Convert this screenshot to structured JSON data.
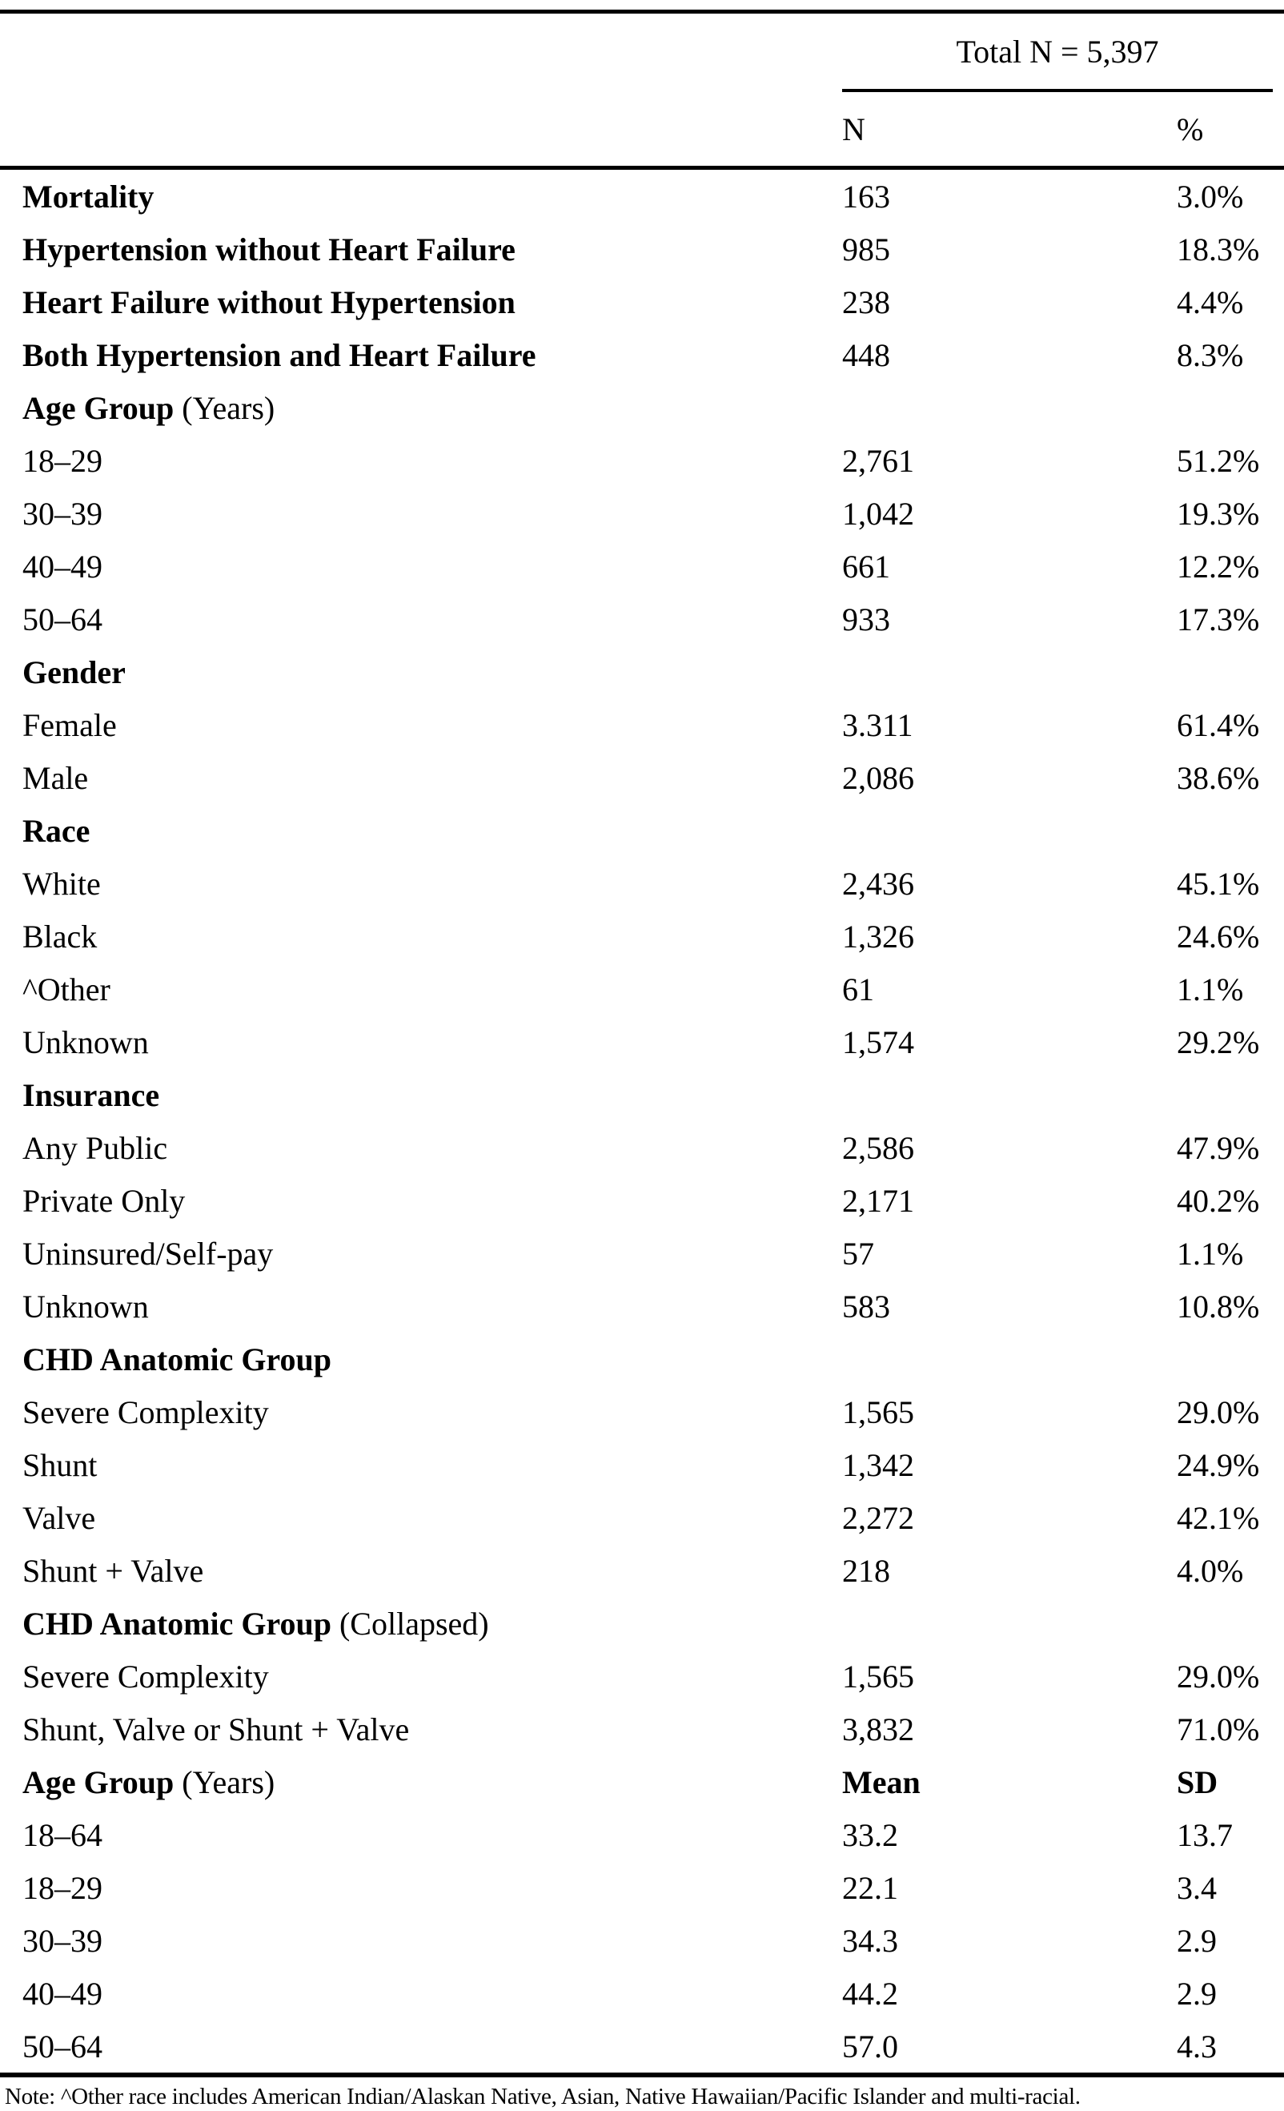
{
  "table": {
    "header": {
      "total_label": "Total N = 5,397",
      "col_n": "N",
      "col_pct": "%"
    },
    "rows": [
      {
        "label": "Mortality",
        "suffix": "",
        "label_bold": true,
        "n": "163",
        "pct": "3.0%",
        "values_bold": false
      },
      {
        "label": "Hypertension without Heart Failure",
        "suffix": "",
        "label_bold": true,
        "n": "985",
        "pct": "18.3%",
        "values_bold": false
      },
      {
        "label": "Heart Failure without Hypertension",
        "suffix": "",
        "label_bold": true,
        "n": "238",
        "pct": "4.4%",
        "values_bold": false
      },
      {
        "label": "Both Hypertension and Heart Failure",
        "suffix": "",
        "label_bold": true,
        "n": "448",
        "pct": "8.3%",
        "values_bold": false
      },
      {
        "label": "Age Group",
        "suffix": " (Years)",
        "label_bold": true,
        "n": "",
        "pct": "",
        "values_bold": false
      },
      {
        "label": "18–29",
        "suffix": "",
        "label_bold": false,
        "n": "2,761",
        "pct": "51.2%",
        "values_bold": false
      },
      {
        "label": "30–39",
        "suffix": "",
        "label_bold": false,
        "n": "1,042",
        "pct": "19.3%",
        "values_bold": false
      },
      {
        "label": "40–49",
        "suffix": "",
        "label_bold": false,
        "n": "661",
        "pct": "12.2%",
        "values_bold": false
      },
      {
        "label": "50–64",
        "suffix": "",
        "label_bold": false,
        "n": "933",
        "pct": "17.3%",
        "values_bold": false
      },
      {
        "label": "Gender",
        "suffix": "",
        "label_bold": true,
        "n": "",
        "pct": "",
        "values_bold": false
      },
      {
        "label": "Female",
        "suffix": "",
        "label_bold": false,
        "n": "3.311",
        "pct": "61.4%",
        "values_bold": false
      },
      {
        "label": "Male",
        "suffix": "",
        "label_bold": false,
        "n": "2,086",
        "pct": "38.6%",
        "values_bold": false
      },
      {
        "label": "Race",
        "suffix": "",
        "label_bold": true,
        "n": "",
        "pct": "",
        "values_bold": false
      },
      {
        "label": "White",
        "suffix": "",
        "label_bold": false,
        "n": "2,436",
        "pct": "45.1%",
        "values_bold": false
      },
      {
        "label": "Black",
        "suffix": "",
        "label_bold": false,
        "n": "1,326",
        "pct": "24.6%",
        "values_bold": false
      },
      {
        "label": "^Other",
        "suffix": "",
        "label_bold": false,
        "n": "61",
        "pct": "1.1%",
        "values_bold": false
      },
      {
        "label": "Unknown",
        "suffix": "",
        "label_bold": false,
        "n": "1,574",
        "pct": "29.2%",
        "values_bold": false
      },
      {
        "label": "Insurance",
        "suffix": "",
        "label_bold": true,
        "n": "",
        "pct": "",
        "values_bold": false
      },
      {
        "label": "Any Public",
        "suffix": "",
        "label_bold": false,
        "n": "2,586",
        "pct": "47.9%",
        "values_bold": false
      },
      {
        "label": "Private Only",
        "suffix": "",
        "label_bold": false,
        "n": "2,171",
        "pct": "40.2%",
        "values_bold": false
      },
      {
        "label": "Uninsured/Self-pay",
        "suffix": "",
        "label_bold": false,
        "n": "57",
        "pct": "1.1%",
        "values_bold": false
      },
      {
        "label": "Unknown",
        "suffix": "",
        "label_bold": false,
        "n": "583",
        "pct": "10.8%",
        "values_bold": false
      },
      {
        "label": "CHD Anatomic Group",
        "suffix": "",
        "label_bold": true,
        "n": "",
        "pct": "",
        "values_bold": false
      },
      {
        "label": "Severe Complexity",
        "suffix": "",
        "label_bold": false,
        "n": "1,565",
        "pct": "29.0%",
        "values_bold": false
      },
      {
        "label": "Shunt",
        "suffix": "",
        "label_bold": false,
        "n": "1,342",
        "pct": "24.9%",
        "values_bold": false
      },
      {
        "label": "Valve",
        "suffix": "",
        "label_bold": false,
        "n": "2,272",
        "pct": "42.1%",
        "values_bold": false
      },
      {
        "label": "Shunt + Valve",
        "suffix": "",
        "label_bold": false,
        "n": "218",
        "pct": "4.0%",
        "values_bold": false
      },
      {
        "label": "CHD Anatomic Group",
        "suffix": " (Collapsed)",
        "label_bold": true,
        "n": "",
        "pct": "",
        "values_bold": false
      },
      {
        "label": "Severe Complexity",
        "suffix": "",
        "label_bold": false,
        "n": "1,565",
        "pct": "29.0%",
        "values_bold": false
      },
      {
        "label": "Shunt, Valve or Shunt + Valve",
        "suffix": "",
        "label_bold": false,
        "n": "3,832",
        "pct": "71.0%",
        "values_bold": false
      },
      {
        "label": "Age Group",
        "suffix": " (Years)",
        "label_bold": true,
        "n": "Mean",
        "pct": "SD",
        "values_bold": true
      },
      {
        "label": "18–64",
        "suffix": "",
        "label_bold": false,
        "n": "33.2",
        "pct": "13.7",
        "values_bold": false
      },
      {
        "label": "18–29",
        "suffix": "",
        "label_bold": false,
        "n": "22.1",
        "pct": "3.4",
        "values_bold": false
      },
      {
        "label": "30–39",
        "suffix": "",
        "label_bold": false,
        "n": "34.3",
        "pct": "2.9",
        "values_bold": false
      },
      {
        "label": "40–49",
        "suffix": "",
        "label_bold": false,
        "n": "44.2",
        "pct": "2.9",
        "values_bold": false
      },
      {
        "label": "50–64",
        "suffix": "",
        "label_bold": false,
        "n": "57.0",
        "pct": "4.3",
        "values_bold": false
      }
    ],
    "note": "Note: ^Other race includes American Indian/Alaskan Native, Asian, Native Hawaiian/Pacific Islander and multi-racial."
  }
}
